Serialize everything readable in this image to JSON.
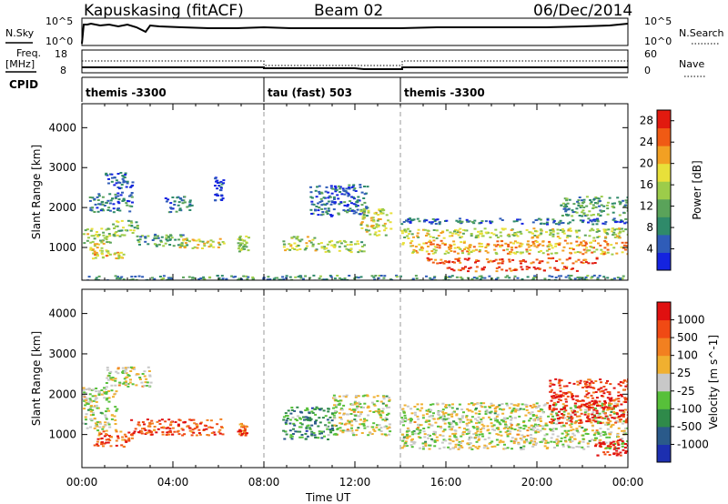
{
  "header": {
    "title": "Kapuskasing (fitACF)",
    "beam": "Beam 02",
    "date": "06/Dec/2014"
  },
  "top_panels": {
    "nsky_label": "N.Sky",
    "nsearch_label": "N.Search",
    "noise_ticks_left": [
      "10^5",
      "10^0"
    ],
    "noise_ticks_right": [
      "10^5",
      "10^0"
    ],
    "freq_label": "Freq.",
    "freq_unit": "[MHz]",
    "freq_ticks": [
      "18",
      "8"
    ],
    "nave_label": "Nave",
    "nave_ticks": [
      "60",
      "0"
    ],
    "cpid_label": "CPID",
    "cpid_segments": [
      {
        "name": "themis -3300",
        "start_hour": 0,
        "end_hour": 8
      },
      {
        "name": "tau (fast) 503",
        "start_hour": 8,
        "end_hour": 14
      },
      {
        "name": "themis -3300",
        "start_hour": 14,
        "end_hour": 24
      }
    ]
  },
  "chart_data": [
    {
      "type": "heatmap",
      "title": "",
      "xlabel": "Time UT",
      "ylabel": "Slant Range [km]",
      "x_ticks": [
        "00:00",
        "04:00",
        "08:00",
        "12:00",
        "16:00",
        "20:00",
        "00:00"
      ],
      "xlim_hours": [
        0,
        24
      ],
      "y_ticks": [
        1000,
        2000,
        3000,
        4000
      ],
      "ylim": [
        180,
        4600
      ],
      "colorbar": {
        "label": "Power [dB]",
        "ticks": [
          4,
          8,
          12,
          16,
          20,
          24,
          28
        ],
        "range": [
          0,
          30
        ],
        "colors": [
          "#1423e0",
          "#2f5cb8",
          "#2f8a6a",
          "#5aa35a",
          "#9ccc4a",
          "#e8e03a",
          "#f2a023",
          "#f05a14",
          "#e11a0f"
        ]
      },
      "bands": [
        {
          "x": [
            0,
            1.2
          ],
          "y": [
            900,
            1500
          ],
          "level": 0.55
        },
        {
          "x": [
            1.2,
            2.4
          ],
          "y": [
            1300,
            1700
          ],
          "level": 0.45
        },
        {
          "x": [
            0.4,
            1.8
          ],
          "y": [
            700,
            900
          ],
          "level": 0.65
        },
        {
          "x": [
            0.3,
            2.2
          ],
          "y": [
            1900,
            2400
          ],
          "level": 0.25
        },
        {
          "x": [
            1.0,
            2.2
          ],
          "y": [
            2500,
            2900
          ],
          "level": 0.15
        },
        {
          "x": [
            2.4,
            4.6
          ],
          "y": [
            1050,
            1350
          ],
          "level": 0.35
        },
        {
          "x": [
            3.6,
            4.8
          ],
          "y": [
            1900,
            2300
          ],
          "level": 0.2
        },
        {
          "x": [
            4.2,
            6.2
          ],
          "y": [
            1000,
            1250
          ],
          "level": 0.6
        },
        {
          "x": [
            5.8,
            6.2
          ],
          "y": [
            2200,
            2800
          ],
          "level": 0.15
        },
        {
          "x": [
            6.8,
            7.3
          ],
          "y": [
            900,
            1300
          ],
          "level": 0.5
        },
        {
          "x": [
            8.8,
            10.2
          ],
          "y": [
            950,
            1300
          ],
          "level": 0.55
        },
        {
          "x": [
            10.2,
            12.4
          ],
          "y": [
            900,
            1200
          ],
          "level": 0.5
        },
        {
          "x": [
            10.0,
            12.5
          ],
          "y": [
            1800,
            2600
          ],
          "level": 0.2
        },
        {
          "x": [
            12.2,
            13.6
          ],
          "y": [
            1300,
            2000
          ],
          "level": 0.55
        },
        {
          "x": [
            14.0,
            24.0
          ],
          "y": [
            1250,
            1500
          ],
          "level": 0.55
        },
        {
          "x": [
            14.0,
            24.0
          ],
          "y": [
            1000,
            1200
          ],
          "level": 0.7
        },
        {
          "x": [
            14.3,
            24.0
          ],
          "y": [
            850,
            980
          ],
          "level": 0.65
        },
        {
          "x": [
            15.0,
            22.6
          ],
          "y": [
            620,
            760
          ],
          "level": 0.85
        },
        {
          "x": [
            16.0,
            21.8
          ],
          "y": [
            420,
            540
          ],
          "level": 0.88
        },
        {
          "x": [
            14.0,
            24.0
          ],
          "y": [
            1600,
            1750
          ],
          "level": 0.2
        },
        {
          "x": [
            21.0,
            24.0
          ],
          "y": [
            1800,
            2300
          ],
          "level": 0.35
        },
        {
          "x": [
            0,
            24.0
          ],
          "y": [
            190,
            320
          ],
          "level": 0.3
        }
      ]
    },
    {
      "type": "heatmap",
      "title": "",
      "xlabel": "Time UT",
      "ylabel": "Slant Range [km]",
      "x_ticks": [
        "00:00",
        "04:00",
        "08:00",
        "12:00",
        "16:00",
        "20:00",
        "00:00"
      ],
      "xlim_hours": [
        0,
        24
      ],
      "y_ticks": [
        1000,
        2000,
        3000,
        4000
      ],
      "ylim": [
        180,
        4600
      ],
      "colorbar": {
        "label": "Velocity [m s^-1]",
        "ticks": [
          "1000",
          "500",
          "100",
          "25",
          "-25",
          "-100",
          "-500",
          "-1000"
        ],
        "colors": [
          "#1c2fb0",
          "#2a5a8a",
          "#2f8a4a",
          "#57c03a",
          "#c8c8c8",
          "#f0b030",
          "#f28020",
          "#f04a14",
          "#e01010"
        ]
      },
      "bands": [
        {
          "x": [
            0,
            1.5
          ],
          "y": [
            1100,
            2200
          ],
          "level": 0.5
        },
        {
          "x": [
            1.0,
            3.0
          ],
          "y": [
            2200,
            2700
          ],
          "level": 0.5
        },
        {
          "x": [
            0.5,
            2.2
          ],
          "y": [
            700,
            1100
          ],
          "level": 0.8
        },
        {
          "x": [
            2.0,
            6.2
          ],
          "y": [
            1000,
            1400
          ],
          "level": 0.82
        },
        {
          "x": [
            6.8,
            7.2
          ],
          "y": [
            1000,
            1300
          ],
          "level": 0.8
        },
        {
          "x": [
            8.8,
            11.0
          ],
          "y": [
            900,
            1700
          ],
          "level": 0.28
        },
        {
          "x": [
            11.0,
            13.5
          ],
          "y": [
            1000,
            2000
          ],
          "level": 0.5
        },
        {
          "x": [
            14.0,
            24.0
          ],
          "y": [
            650,
            1800
          ],
          "level": 0.5
        },
        {
          "x": [
            20.5,
            24.0
          ],
          "y": [
            1300,
            2400
          ],
          "level": 0.9
        },
        {
          "x": [
            22.5,
            24.0
          ],
          "y": [
            500,
            900
          ],
          "level": 0.95
        }
      ]
    }
  ]
}
